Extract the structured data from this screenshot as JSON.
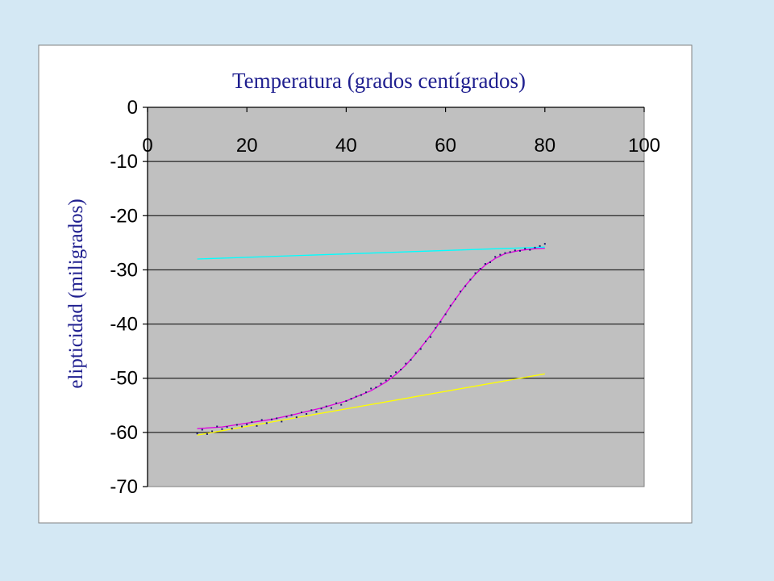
{
  "chart_data": {
    "type": "scatter",
    "title": "Temperatura (grados centígrados)",
    "xlabel": "",
    "ylabel": "elipticidad (miligrados)",
    "xlim": [
      0,
      100
    ],
    "ylim": [
      -70,
      0
    ],
    "x_ticks": [
      "0",
      "20",
      "40",
      "60",
      "80",
      "100"
    ],
    "y_ticks": [
      "0",
      "-10",
      "-20",
      "-30",
      "-40",
      "-50",
      "-60",
      "-70"
    ],
    "x_axis_position": "top",
    "grid": true,
    "legend": "none",
    "colors": {
      "plot_background": "#c0c0c0",
      "chart_area": "#ffffff",
      "page": "#d4e8f4",
      "points": "#1a1a6e",
      "fit_curve": "#e000e0",
      "native_baseline": "#ffff00",
      "denatured_baseline": "#00ffff",
      "title": "#1f1f8f"
    },
    "series": [
      {
        "type": "scatter",
        "color": "#1a1a6e",
        "x": [
          10,
          11,
          12,
          13,
          14,
          15,
          16,
          17,
          18,
          19,
          20,
          21,
          22,
          23,
          24,
          25,
          26,
          27,
          28,
          29,
          30,
          31,
          32,
          33,
          34,
          35,
          36,
          37,
          38,
          39,
          40,
          41,
          42,
          43,
          44,
          45,
          46,
          47,
          48,
          49,
          50,
          51,
          52,
          53,
          54,
          55,
          56,
          57,
          58,
          59,
          60,
          61,
          62,
          63,
          64,
          65,
          66,
          67,
          68,
          69,
          70,
          71,
          72,
          73,
          74,
          75,
          76,
          77,
          78,
          79,
          80
        ],
        "y": [
          -60.2,
          -59.5,
          -60.3,
          -59.8,
          -58.9,
          -59.4,
          -59.0,
          -59.3,
          -58.6,
          -58.9,
          -58.5,
          -58.1,
          -58.8,
          -57.7,
          -58.3,
          -57.6,
          -57.4,
          -58.0,
          -57.1,
          -56.8,
          -57.2,
          -56.3,
          -56.6,
          -55.9,
          -56.2,
          -55.6,
          -55.2,
          -55.5,
          -54.6,
          -54.9,
          -54.2,
          -53.8,
          -53.4,
          -53.1,
          -52.6,
          -51.9,
          -51.7,
          -51.0,
          -50.4,
          -49.6,
          -48.9,
          -48.4,
          -47.3,
          -46.6,
          -45.4,
          -44.6,
          -43.2,
          -42.4,
          -40.7,
          -39.6,
          -38.2,
          -36.6,
          -35.4,
          -34.0,
          -33.0,
          -31.8,
          -30.6,
          -29.8,
          -28.9,
          -28.6,
          -27.6,
          -27.2,
          -26.9,
          -26.7,
          -26.4,
          -26.5,
          -26.1,
          -26.3,
          -25.9,
          -25.6,
          -25.2
        ]
      },
      {
        "type": "line",
        "color": "#e000e0",
        "x": [
          10,
          15,
          20,
          25,
          30,
          35,
          40,
          45,
          48,
          50,
          52,
          54,
          56,
          58,
          60,
          62,
          64,
          66,
          68,
          70,
          72,
          75,
          78,
          80
        ],
        "y": [
          -59.3,
          -59.0,
          -58.3,
          -57.6,
          -56.6,
          -55.5,
          -54.2,
          -52.3,
          -50.7,
          -49.3,
          -47.6,
          -45.5,
          -43.2,
          -40.8,
          -38.1,
          -35.4,
          -32.9,
          -30.8,
          -29.1,
          -27.9,
          -27.0,
          -26.4,
          -26.1,
          -26.0
        ]
      },
      {
        "type": "line",
        "color": "#ffff00",
        "x": [
          10,
          80
        ],
        "y": [
          -60.5,
          -49.2
        ]
      },
      {
        "type": "line",
        "color": "#00ffff",
        "x": [
          10,
          80
        ],
        "y": [
          -28.0,
          -25.8
        ]
      }
    ]
  }
}
